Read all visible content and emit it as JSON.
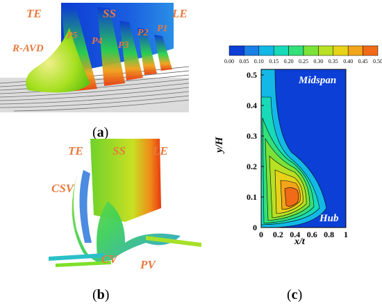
{
  "figure": {
    "panel_a": {
      "caption_letter": "a",
      "labels": {
        "te": "TE",
        "ss": "SS",
        "le": "LE",
        "r_avd": "R-AVD",
        "p5": "P5",
        "p4": "P4",
        "p3": "P3",
        "p2": "P2",
        "p1": "P1"
      }
    },
    "panel_b": {
      "caption_letter": "b",
      "labels": {
        "te": "TE",
        "ss": "SS",
        "le": "LE",
        "csv": "CSV",
        "cv": "CV",
        "pv": "PV"
      }
    },
    "panel_c": {
      "caption_letter": "c",
      "colorbar": {
        "ticks": [
          "0.00",
          "0.05",
          "0.10",
          "0.15",
          "0.20",
          "0.25",
          "0.30",
          "0.35",
          "0.40",
          "0.45",
          "0.50"
        ],
        "colors": [
          "#0b3fd6",
          "#1a7fe6",
          "#13b8e6",
          "#18d9b8",
          "#33e07a",
          "#7be23a",
          "#b8e024",
          "#e6d21a",
          "#f2a51a",
          "#f06a18",
          "#e6301a"
        ]
      },
      "annotations": {
        "midspan": "Midspan",
        "hub": "Hub"
      },
      "axes": {
        "ylabel": "y/H",
        "xlabel": "x/t",
        "yticks": [
          "0",
          "0.1",
          "0.2",
          "0.3",
          "0.4",
          "0.5"
        ],
        "xticks": [
          "0",
          "0.2",
          "0.4",
          "0.6",
          "0.8",
          "1"
        ]
      }
    }
  },
  "chart_data": {
    "type": "heatmap",
    "xlabel": "x/t",
    "ylabel": "y/H",
    "xlim": [
      0,
      1
    ],
    "ylim": [
      0,
      0.5
    ],
    "colorbar_range": [
      0.0,
      0.5
    ],
    "colorbar_ticks": [
      0.0,
      0.05,
      0.1,
      0.15,
      0.2,
      0.25,
      0.3,
      0.35,
      0.4,
      0.45,
      0.5
    ],
    "annotations": [
      "Midspan",
      "Hub"
    ],
    "peak": {
      "x": 0.5,
      "y": 0.12,
      "value": 0.5
    }
  }
}
